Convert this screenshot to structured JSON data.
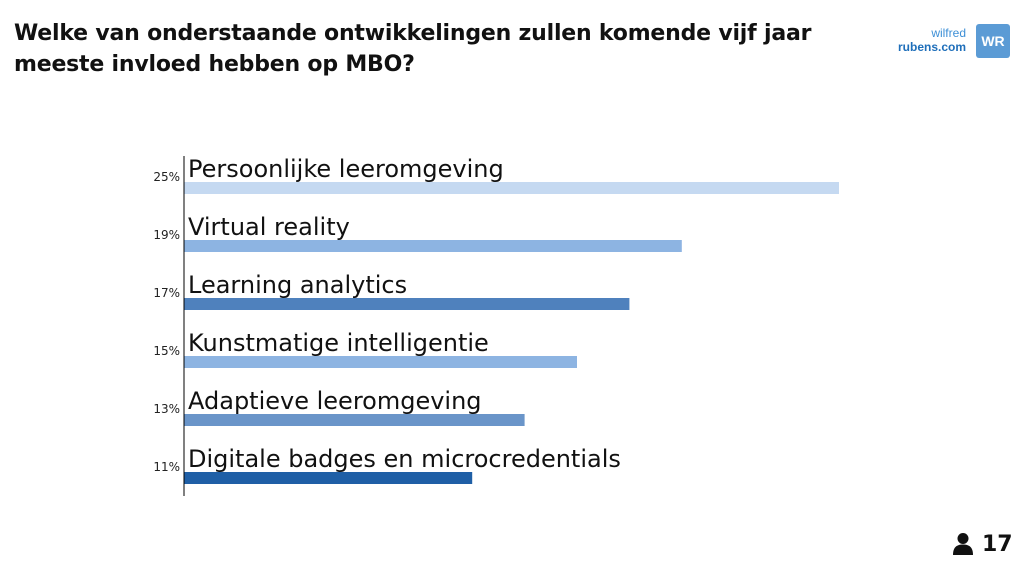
{
  "question": {
    "title": "Welke van onderstaande ontwikkelingen zullen komende vijf jaar meeste invloed hebben op MBO?"
  },
  "logo": {
    "line1": "wilfred",
    "line2": "rubens.com",
    "mark": "WR"
  },
  "participants": {
    "icon": "person-icon",
    "count": "17"
  },
  "chart_data": {
    "type": "bar",
    "orientation": "horizontal",
    "categories": [
      "Persoonlijke leeromgeving",
      "Virtual reality",
      "Learning analytics",
      "Kunstmatige intelligentie",
      "Adaptieve leeromgeving",
      "Digitale badges en microcredentials"
    ],
    "values": [
      25,
      19,
      17,
      15,
      13,
      11
    ],
    "value_labels": [
      "25%",
      "19%",
      "17%",
      "15%",
      "13%",
      "11%"
    ],
    "colors": [
      "#c5d9f1",
      "#8db4e2",
      "#4f81bd",
      "#8db4e2",
      "#6a95c9",
      "#1f5fa6"
    ],
    "xlim": [
      0,
      25
    ],
    "axis_color": "#000000",
    "grid": false,
    "legend": "none"
  }
}
